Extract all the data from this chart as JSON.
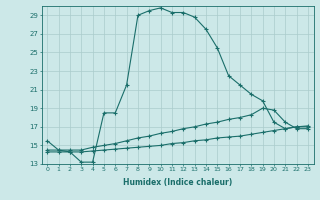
{
  "xlabel": "Humidex (Indice chaleur)",
  "bg_color": "#cce8e8",
  "grid_color": "#aacccc",
  "line_color": "#1a6e6a",
  "xlim": [
    -0.5,
    23.5
  ],
  "ylim": [
    13,
    30
  ],
  "xticks": [
    0,
    1,
    2,
    3,
    4,
    5,
    6,
    7,
    8,
    9,
    10,
    11,
    12,
    13,
    14,
    15,
    16,
    17,
    18,
    19,
    20,
    21,
    22,
    23
  ],
  "yticks": [
    13,
    15,
    17,
    19,
    21,
    23,
    25,
    27,
    29
  ],
  "curve1_x": [
    0,
    1,
    2,
    3,
    4,
    5,
    6,
    7,
    8,
    9,
    10,
    11,
    12,
    13,
    14,
    15,
    16,
    17,
    18,
    19,
    20,
    21,
    22,
    23
  ],
  "curve1_y": [
    15.5,
    14.5,
    14.3,
    13.2,
    13.2,
    18.5,
    18.5,
    21.5,
    29.0,
    29.5,
    29.8,
    29.3,
    29.3,
    28.8,
    27.5,
    25.5,
    22.5,
    21.5,
    20.5,
    19.8,
    17.5,
    16.8,
    17.0,
    17.0
  ],
  "curve2_x": [
    0,
    1,
    2,
    3,
    4,
    5,
    6,
    7,
    8,
    9,
    10,
    11,
    12,
    13,
    14,
    15,
    16,
    17,
    18,
    19,
    20,
    21,
    22,
    23
  ],
  "curve2_y": [
    14.5,
    14.5,
    14.5,
    14.5,
    14.8,
    15.0,
    15.2,
    15.5,
    15.8,
    16.0,
    16.3,
    16.5,
    16.8,
    17.0,
    17.3,
    17.5,
    17.8,
    18.0,
    18.3,
    19.0,
    18.8,
    17.5,
    16.8,
    16.8
  ],
  "curve3_x": [
    0,
    1,
    2,
    3,
    4,
    5,
    6,
    7,
    8,
    9,
    10,
    11,
    12,
    13,
    14,
    15,
    16,
    17,
    18,
    19,
    20,
    21,
    22,
    23
  ],
  "curve3_y": [
    14.3,
    14.3,
    14.3,
    14.3,
    14.4,
    14.5,
    14.6,
    14.7,
    14.8,
    14.9,
    15.0,
    15.2,
    15.3,
    15.5,
    15.6,
    15.8,
    15.9,
    16.0,
    16.2,
    16.4,
    16.6,
    16.8,
    17.0,
    17.1
  ]
}
